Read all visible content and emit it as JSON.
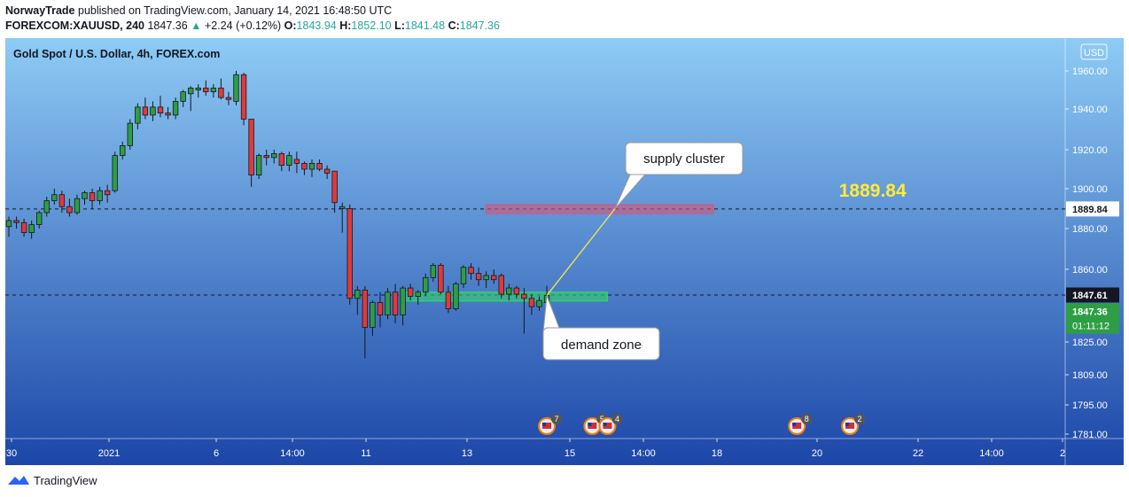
{
  "header": {
    "publisher": "NorwayTrade",
    "published_text": "published on TradingView.com, January 14, 2021 16:48:50 UTC",
    "symbol": "FOREXCOM:XAUUSD, 240",
    "last": "1847.36",
    "change": "+2.24 (+0.12%)",
    "open_label": "O:",
    "open": "1843.94",
    "high_label": "H:",
    "high": "1852.10",
    "low_label": "L:",
    "low": "1841.48",
    "close_label": "C:",
    "close": "1847.36"
  },
  "footer": {
    "brand": "TradingView"
  },
  "colors": {
    "bg_top": "#8ecbf5",
    "bg_bottom": "#1c46a8",
    "up": "#2e9e44",
    "down": "#e03a3a",
    "supply_zone": "#d2587a",
    "demand_zone": "#35d36a",
    "price_label_yellow": "#ffeb3b",
    "current_price_box": "#2e9e44"
  },
  "chart_data": {
    "type": "candlestick",
    "title": "Gold Spot / U.S. Dollar, 4h, FOREX.com",
    "currency_badge": "USD",
    "y_ticks": [
      "1960.00",
      "1940.00",
      "1920.00",
      "1900.00",
      "1880.00",
      "1860.00",
      "1825.00",
      "1809.00",
      "1795.00",
      "1781.00"
    ],
    "x_ticks": [
      "30",
      "2021",
      "6",
      "14:00",
      "11",
      "13",
      "15",
      "14:00",
      "18",
      "20",
      "22",
      "14:00",
      "2"
    ],
    "candles": [
      {
        "o": 1881,
        "h": 1886,
        "l": 1876,
        "c": 1884
      },
      {
        "o": 1884,
        "h": 1886,
        "l": 1880,
        "c": 1883
      },
      {
        "o": 1883,
        "h": 1885,
        "l": 1876,
        "c": 1878
      },
      {
        "o": 1878,
        "h": 1884,
        "l": 1875,
        "c": 1882
      },
      {
        "o": 1882,
        "h": 1889,
        "l": 1880,
        "c": 1888
      },
      {
        "o": 1888,
        "h": 1896,
        "l": 1886,
        "c": 1894
      },
      {
        "o": 1894,
        "h": 1900,
        "l": 1892,
        "c": 1897
      },
      {
        "o": 1897,
        "h": 1899,
        "l": 1888,
        "c": 1891
      },
      {
        "o": 1891,
        "h": 1895,
        "l": 1886,
        "c": 1888
      },
      {
        "o": 1888,
        "h": 1897,
        "l": 1887,
        "c": 1895
      },
      {
        "o": 1895,
        "h": 1899,
        "l": 1892,
        "c": 1898
      },
      {
        "o": 1898,
        "h": 1900,
        "l": 1890,
        "c": 1894
      },
      {
        "o": 1894,
        "h": 1901,
        "l": 1892,
        "c": 1899
      },
      {
        "o": 1899,
        "h": 1902,
        "l": 1893,
        "c": 1897
      },
      {
        "o": 1899,
        "h": 1919,
        "l": 1898,
        "c": 1917
      },
      {
        "o": 1917,
        "h": 1924,
        "l": 1915,
        "c": 1922
      },
      {
        "o": 1922,
        "h": 1935,
        "l": 1920,
        "c": 1933
      },
      {
        "o": 1933,
        "h": 1943,
        "l": 1930,
        "c": 1941
      },
      {
        "o": 1941,
        "h": 1946,
        "l": 1935,
        "c": 1937
      },
      {
        "o": 1937,
        "h": 1944,
        "l": 1934,
        "c": 1941
      },
      {
        "o": 1941,
        "h": 1947,
        "l": 1936,
        "c": 1938
      },
      {
        "o": 1938,
        "h": 1941,
        "l": 1935,
        "c": 1937
      },
      {
        "o": 1937,
        "h": 1946,
        "l": 1935,
        "c": 1944
      },
      {
        "o": 1944,
        "h": 1950,
        "l": 1941,
        "c": 1949
      },
      {
        "o": 1948,
        "h": 1952,
        "l": 1939,
        "c": 1951
      },
      {
        "o": 1950,
        "h": 1953,
        "l": 1946,
        "c": 1951
      },
      {
        "o": 1951,
        "h": 1955,
        "l": 1947,
        "c": 1949
      },
      {
        "o": 1949,
        "h": 1953,
        "l": 1946,
        "c": 1951
      },
      {
        "o": 1951,
        "h": 1956,
        "l": 1945,
        "c": 1946
      },
      {
        "o": 1946,
        "h": 1949,
        "l": 1942,
        "c": 1945
      },
      {
        "o": 1944,
        "h": 1960,
        "l": 1942,
        "c": 1958
      },
      {
        "o": 1958,
        "h": 1959,
        "l": 1932,
        "c": 1935
      },
      {
        "o": 1935,
        "h": 1934,
        "l": 1901,
        "c": 1907
      },
      {
        "o": 1907,
        "h": 1918,
        "l": 1905,
        "c": 1917
      },
      {
        "o": 1917,
        "h": 1920,
        "l": 1912,
        "c": 1916
      },
      {
        "o": 1916,
        "h": 1920,
        "l": 1913,
        "c": 1918
      },
      {
        "o": 1918,
        "h": 1919,
        "l": 1909,
        "c": 1912
      },
      {
        "o": 1912,
        "h": 1919,
        "l": 1909,
        "c": 1917
      },
      {
        "o": 1915,
        "h": 1919,
        "l": 1908,
        "c": 1913
      },
      {
        "o": 1913,
        "h": 1914,
        "l": 1907,
        "c": 1910
      },
      {
        "o": 1910,
        "h": 1915,
        "l": 1906,
        "c": 1913
      },
      {
        "o": 1913,
        "h": 1915,
        "l": 1909,
        "c": 1910
      },
      {
        "o": 1910,
        "h": 1912,
        "l": 1905,
        "c": 1908
      },
      {
        "o": 1909,
        "h": 1908,
        "l": 1888,
        "c": 1893
      },
      {
        "o": 1890,
        "h": 1893,
        "l": 1878,
        "c": 1891
      },
      {
        "o": 1890,
        "h": 1892,
        "l": 1843,
        "c": 1846
      },
      {
        "o": 1846,
        "h": 1852,
        "l": 1838,
        "c": 1850
      },
      {
        "o": 1850,
        "h": 1852,
        "l": 1817,
        "c": 1832
      },
      {
        "o": 1832,
        "h": 1845,
        "l": 1828,
        "c": 1844
      },
      {
        "o": 1844,
        "h": 1849,
        "l": 1832,
        "c": 1838
      },
      {
        "o": 1838,
        "h": 1851,
        "l": 1836,
        "c": 1849
      },
      {
        "o": 1849,
        "h": 1853,
        "l": 1834,
        "c": 1838
      },
      {
        "o": 1838,
        "h": 1852,
        "l": 1833,
        "c": 1851
      },
      {
        "o": 1851,
        "h": 1853,
        "l": 1845,
        "c": 1847
      },
      {
        "o": 1847,
        "h": 1850,
        "l": 1843,
        "c": 1849
      },
      {
        "o": 1849,
        "h": 1858,
        "l": 1847,
        "c": 1856
      },
      {
        "o": 1856,
        "h": 1863,
        "l": 1854,
        "c": 1862
      },
      {
        "o": 1862,
        "h": 1863,
        "l": 1848,
        "c": 1849
      },
      {
        "o": 1849,
        "h": 1852,
        "l": 1839,
        "c": 1841
      },
      {
        "o": 1841,
        "h": 1854,
        "l": 1840,
        "c": 1853
      },
      {
        "o": 1853,
        "h": 1862,
        "l": 1851,
        "c": 1861
      },
      {
        "o": 1861,
        "h": 1863,
        "l": 1855,
        "c": 1858
      },
      {
        "o": 1858,
        "h": 1861,
        "l": 1852,
        "c": 1855
      },
      {
        "o": 1855,
        "h": 1859,
        "l": 1851,
        "c": 1857
      },
      {
        "o": 1857,
        "h": 1860,
        "l": 1853,
        "c": 1855
      },
      {
        "o": 1857,
        "h": 1858,
        "l": 1846,
        "c": 1848
      },
      {
        "o": 1848,
        "h": 1853,
        "l": 1845,
        "c": 1851
      },
      {
        "o": 1851,
        "h": 1852,
        "l": 1846,
        "c": 1848
      },
      {
        "o": 1848,
        "h": 1851,
        "l": 1829,
        "c": 1846
      },
      {
        "o": 1846,
        "h": 1848,
        "l": 1838,
        "c": 1842
      },
      {
        "o": 1842,
        "h": 1847,
        "l": 1840,
        "c": 1845
      },
      {
        "o": 1843.94,
        "h": 1852.1,
        "l": 1841.48,
        "c": 1847.36
      }
    ],
    "horizontal_lines": [
      {
        "price": 1889.84,
        "label": "1889.84"
      },
      {
        "price": 1847.61,
        "label": "1847.61"
      }
    ],
    "current_price": {
      "price": 1847.36,
      "label": "1847.36",
      "countdown": "01:11:12"
    },
    "zones": [
      {
        "name": "supply",
        "from_bar": 63,
        "to_bar": 93,
        "low": 1888,
        "high": 1892
      },
      {
        "name": "demand",
        "from_bar": 52,
        "to_bar": 79,
        "low": 1846,
        "high": 1849
      }
    ],
    "projection_line": {
      "from_bar": 71,
      "from_price": 1847.36,
      "to_bar": 80,
      "to_price": 1890
    },
    "big_label": {
      "text": "1889.84",
      "bar": 114,
      "price": 1896
    },
    "callouts": [
      {
        "text": "supply cluster",
        "bar": 89,
        "price": 1920
      },
      {
        "text": "demand zone",
        "bar": 78,
        "price": 1832
      }
    ],
    "events": [
      {
        "count": "7",
        "bar": 71
      },
      {
        "count": "5",
        "bar": 77
      },
      {
        "count": "4",
        "bar": 79
      },
      {
        "count": "8",
        "bar": 104
      },
      {
        "count": "2",
        "bar": 111
      }
    ]
  }
}
